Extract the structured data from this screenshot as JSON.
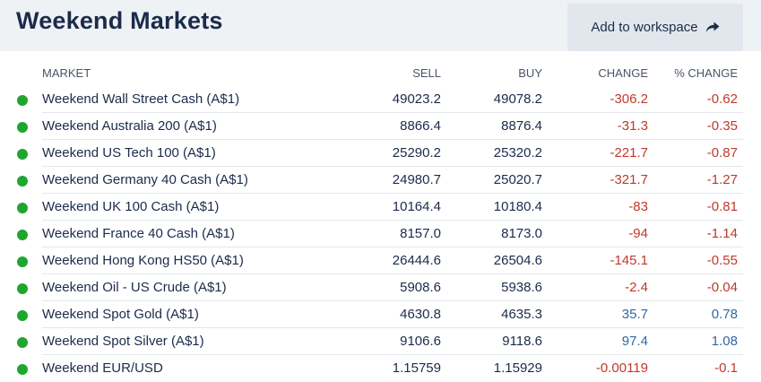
{
  "header": {
    "title": "Weekend Markets",
    "add_button_label": "Add to workspace"
  },
  "columns": {
    "market": "MARKET",
    "sell": "SELL",
    "buy": "BUY",
    "change": "CHANGE",
    "pct_change": "% CHANGE"
  },
  "colors": {
    "status_dot": "#1fa62e",
    "negative": "#c0392b",
    "positive": "#2f6aa3"
  },
  "rows": [
    {
      "market": "Weekend Wall Street Cash (A$1)",
      "sell": "49023.2",
      "buy": "49078.2",
      "change": "-306.2",
      "pct": "-0.62",
      "dir": "neg"
    },
    {
      "market": "Weekend Australia 200 (A$1)",
      "sell": "8866.4",
      "buy": "8876.4",
      "change": "-31.3",
      "pct": "-0.35",
      "dir": "neg"
    },
    {
      "market": "Weekend US Tech 100 (A$1)",
      "sell": "25290.2",
      "buy": "25320.2",
      "change": "-221.7",
      "pct": "-0.87",
      "dir": "neg"
    },
    {
      "market": "Weekend Germany 40 Cash (A$1)",
      "sell": "24980.7",
      "buy": "25020.7",
      "change": "-321.7",
      "pct": "-1.27",
      "dir": "neg"
    },
    {
      "market": "Weekend UK 100 Cash (A$1)",
      "sell": "10164.4",
      "buy": "10180.4",
      "change": "-83",
      "pct": "-0.81",
      "dir": "neg"
    },
    {
      "market": "Weekend France 40 Cash (A$1)",
      "sell": "8157.0",
      "buy": "8173.0",
      "change": "-94",
      "pct": "-1.14",
      "dir": "neg"
    },
    {
      "market": "Weekend Hong Kong HS50 (A$1)",
      "sell": "26444.6",
      "buy": "26504.6",
      "change": "-145.1",
      "pct": "-0.55",
      "dir": "neg"
    },
    {
      "market": "Weekend Oil - US Crude (A$1)",
      "sell": "5908.6",
      "buy": "5938.6",
      "change": "-2.4",
      "pct": "-0.04",
      "dir": "neg"
    },
    {
      "market": "Weekend Spot Gold (A$1)",
      "sell": "4630.8",
      "buy": "4635.3",
      "change": "35.7",
      "pct": "0.78",
      "dir": "pos"
    },
    {
      "market": "Weekend Spot Silver (A$1)",
      "sell": "9106.6",
      "buy": "9118.6",
      "change": "97.4",
      "pct": "1.08",
      "dir": "pos"
    },
    {
      "market": "Weekend EUR/USD",
      "sell": "1.15759",
      "buy": "1.15929",
      "change": "-0.00119",
      "pct": "-0.1",
      "dir": "neg"
    }
  ]
}
